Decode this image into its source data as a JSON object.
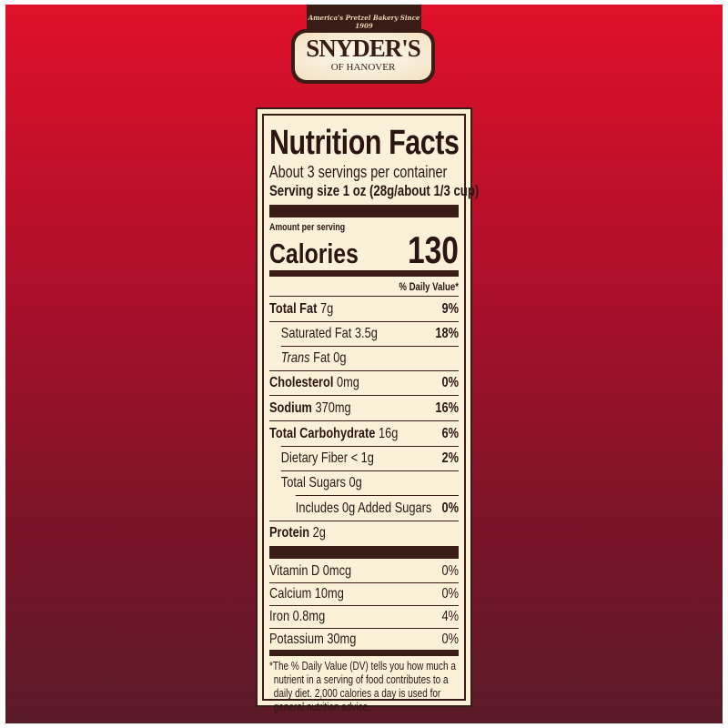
{
  "brand": {
    "tagline": "America's Pretzel Bakery Since 1909",
    "name": "SNYDER'S",
    "sub": "OF HANOVER"
  },
  "label": {
    "title": "Nutrition Facts",
    "servings": "About 3 servings per container",
    "serving_size": "Serving size 1 oz (28g/about 1/3 cup)",
    "amount_per_serving": "Amount per serving",
    "calories_label": "Calories",
    "calories": "130",
    "dv_header": "% Daily Value*",
    "nutrients": [
      {
        "name": "Total Fat",
        "amount": "7g",
        "dv": "9%"
      },
      {
        "name": "Saturated Fat",
        "amount": "3.5g",
        "dv": "18%"
      },
      {
        "name": "Trans",
        "name2": "Fat",
        "amount": "0g",
        "dv": ""
      },
      {
        "name": "Cholesterol",
        "amount": "0mg",
        "dv": "0%"
      },
      {
        "name": "Sodium",
        "amount": "370mg",
        "dv": "16%"
      },
      {
        "name": "Total Carbohydrate",
        "amount": "16g",
        "dv": "6%"
      },
      {
        "name": "Dietary Fiber",
        "amount": "< 1g",
        "dv": "2%"
      },
      {
        "name": "Total Sugars",
        "amount": "0g",
        "dv": ""
      },
      {
        "name": "Includes 0g Added Sugars",
        "amount": "",
        "dv": "0%"
      },
      {
        "name": "Protein",
        "amount": "2g",
        "dv": ""
      }
    ],
    "vitamins": [
      {
        "name": "Vitamin D 0mcg",
        "dv": "0%"
      },
      {
        "name": "Calcium 10mg",
        "dv": "0%"
      },
      {
        "name": "Iron 0.8mg",
        "dv": "4%"
      },
      {
        "name": "Potassium 30mg",
        "dv": "0%"
      }
    ],
    "footnote": "*The % Daily Value (DV) tells you how much a nutrient in a serving of food contributes to a daily diet. 2,000 calories a day is used for general nutrition advice."
  }
}
